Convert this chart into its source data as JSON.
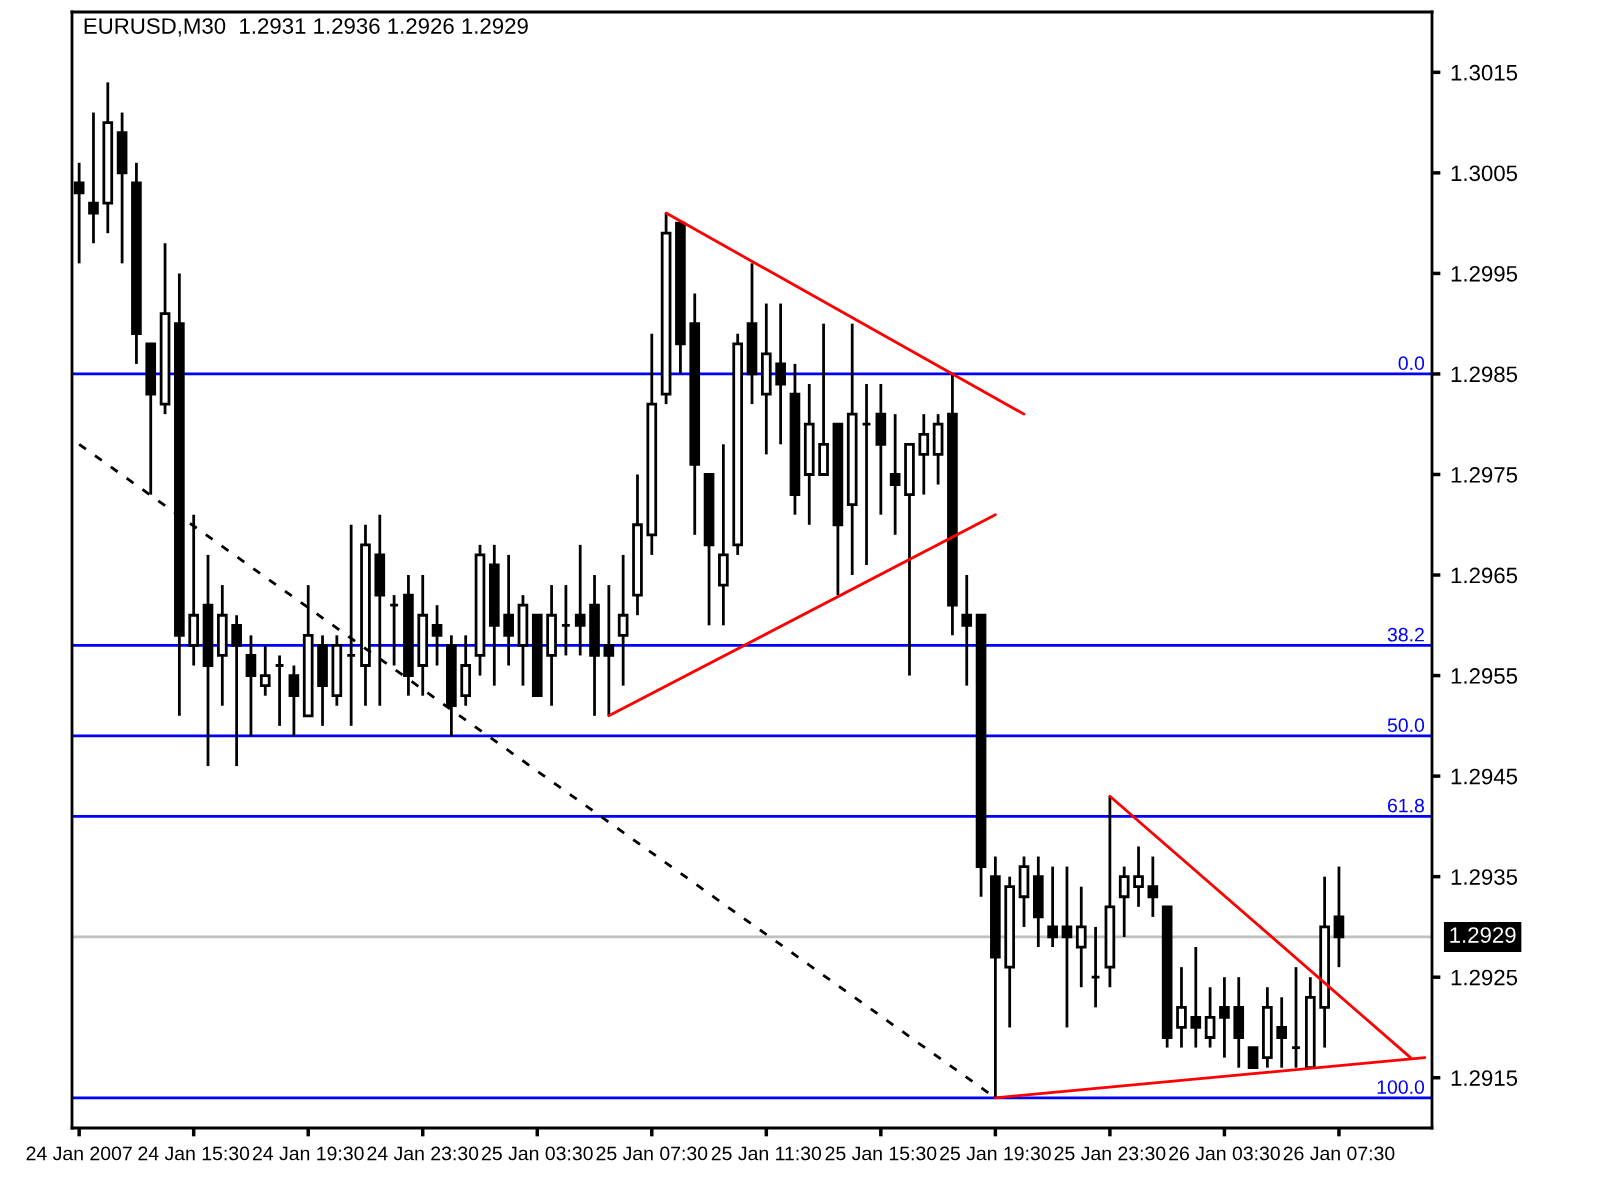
{
  "chart_data": {
    "type": "candlestick",
    "title": "EURUSD,M30  1.2931 1.2936 1.2926 1.2929",
    "color": "#000000",
    "x": [
      "2007-01-24T11:30",
      "2007-01-24T12:00",
      "2007-01-24T12:30",
      "2007-01-24T13:00",
      "2007-01-24T13:30",
      "2007-01-24T14:00",
      "2007-01-24T14:30",
      "2007-01-24T15:00",
      "2007-01-24T15:30",
      "2007-01-24T16:00",
      "2007-01-24T16:30",
      "2007-01-24T17:00",
      "2007-01-24T17:30",
      "2007-01-24T18:00",
      "2007-01-24T18:30",
      "2007-01-24T19:00",
      "2007-01-24T19:30",
      "2007-01-24T20:00",
      "2007-01-24T20:30",
      "2007-01-24T21:00",
      "2007-01-24T21:30",
      "2007-01-24T22:00",
      "2007-01-24T22:30",
      "2007-01-24T23:00",
      "2007-01-24T23:30",
      "2007-01-25T00:00",
      "2007-01-25T00:30",
      "2007-01-25T01:00",
      "2007-01-25T01:30",
      "2007-01-25T02:00",
      "2007-01-25T02:30",
      "2007-01-25T03:00",
      "2007-01-25T03:30",
      "2007-01-25T04:00",
      "2007-01-25T04:30",
      "2007-01-25T05:00",
      "2007-01-25T05:30",
      "2007-01-25T06:00",
      "2007-01-25T06:30",
      "2007-01-25T07:00",
      "2007-01-25T07:30",
      "2007-01-25T08:00",
      "2007-01-25T08:30",
      "2007-01-25T09:00",
      "2007-01-25T09:30",
      "2007-01-25T10:00",
      "2007-01-25T10:30",
      "2007-01-25T11:00",
      "2007-01-25T11:30",
      "2007-01-25T12:00",
      "2007-01-25T12:30",
      "2007-01-25T13:00",
      "2007-01-25T13:30",
      "2007-01-25T14:00",
      "2007-01-25T14:30",
      "2007-01-25T15:00",
      "2007-01-25T15:30",
      "2007-01-25T16:00",
      "2007-01-25T16:30",
      "2007-01-25T17:00",
      "2007-01-25T17:30",
      "2007-01-25T18:00",
      "2007-01-25T18:30",
      "2007-01-25T19:00",
      "2007-01-25T19:30",
      "2007-01-25T20:00",
      "2007-01-25T20:30",
      "2007-01-25T21:00",
      "2007-01-25T21:30",
      "2007-01-25T22:00",
      "2007-01-25T22:30",
      "2007-01-25T23:00",
      "2007-01-25T23:30",
      "2007-01-26T00:00",
      "2007-01-26T00:30",
      "2007-01-26T01:00",
      "2007-01-26T01:30",
      "2007-01-26T02:00",
      "2007-01-26T02:30",
      "2007-01-26T03:00",
      "2007-01-26T03:30",
      "2007-01-26T04:00",
      "2007-01-26T04:30",
      "2007-01-26T05:00",
      "2007-01-26T05:30",
      "2007-01-26T06:00",
      "2007-01-26T06:30",
      "2007-01-26T07:00",
      "2007-01-26T07:30"
    ],
    "ohlc": [
      [
        1.3004,
        1.3006,
        1.2996,
        1.3003
      ],
      [
        1.3002,
        1.3011,
        1.2998,
        1.3001
      ],
      [
        1.3002,
        1.3014,
        1.2999,
        1.301
      ],
      [
        1.3009,
        1.3011,
        1.2996,
        1.3005
      ],
      [
        1.3004,
        1.3006,
        1.2986,
        1.2989
      ],
      [
        1.2988,
        1.2988,
        1.2973,
        1.2983
      ],
      [
        1.2982,
        1.2998,
        1.2981,
        1.2991
      ],
      [
        1.299,
        1.2995,
        1.2951,
        1.2959
      ],
      [
        1.2958,
        1.2971,
        1.2956,
        1.2961
      ],
      [
        1.2962,
        1.2967,
        1.2946,
        1.2956
      ],
      [
        1.2957,
        1.2964,
        1.2952,
        1.2961
      ],
      [
        1.296,
        1.2961,
        1.2946,
        1.2958
      ],
      [
        1.2957,
        1.2959,
        1.2949,
        1.2955
      ],
      [
        1.2954,
        1.2958,
        1.2953,
        1.2955
      ],
      [
        1.2956,
        1.2957,
        1.295,
        1.2956
      ],
      [
        1.2955,
        1.2956,
        1.2949,
        1.2953
      ],
      [
        1.2951,
        1.2964,
        1.2951,
        1.2959
      ],
      [
        1.2958,
        1.2959,
        1.295,
        1.2954
      ],
      [
        1.2953,
        1.2959,
        1.2952,
        1.2958
      ],
      [
        1.2957,
        1.297,
        1.295,
        1.2957
      ],
      [
        1.2956,
        1.297,
        1.2952,
        1.2968
      ],
      [
        1.2967,
        1.2971,
        1.2952,
        1.2963
      ],
      [
        1.2962,
        1.2963,
        1.2956,
        1.2962
      ],
      [
        1.2963,
        1.2965,
        1.2953,
        1.2955
      ],
      [
        1.2956,
        1.2965,
        1.2953,
        1.2961
      ],
      [
        1.296,
        1.2962,
        1.2956,
        1.2959
      ],
      [
        1.2958,
        1.2959,
        1.2949,
        1.2952
      ],
      [
        1.2953,
        1.2959,
        1.2952,
        1.2956
      ],
      [
        1.2957,
        1.2968,
        1.2955,
        1.2967
      ],
      [
        1.2966,
        1.2968,
        1.2954,
        1.296
      ],
      [
        1.2961,
        1.2967,
        1.2956,
        1.2959
      ],
      [
        1.2958,
        1.2963,
        1.2954,
        1.2962
      ],
      [
        1.2961,
        1.2961,
        1.2953,
        1.2953
      ],
      [
        1.2957,
        1.2964,
        1.2952,
        1.2961
      ],
      [
        1.296,
        1.2964,
        1.2957,
        1.296
      ],
      [
        1.2961,
        1.2968,
        1.2957,
        1.296
      ],
      [
        1.2962,
        1.2965,
        1.2951,
        1.2957
      ],
      [
        1.2958,
        1.2964,
        1.2951,
        1.2957
      ],
      [
        1.2959,
        1.2967,
        1.2954,
        1.2961
      ],
      [
        1.2963,
        1.2975,
        1.2961,
        1.297
      ],
      [
        1.2969,
        1.2989,
        1.2967,
        1.2982
      ],
      [
        1.2983,
        1.3001,
        1.2982,
        1.2999
      ],
      [
        1.3,
        1.3,
        1.2985,
        1.2988
      ],
      [
        1.299,
        1.2993,
        1.2969,
        1.2976
      ],
      [
        1.2975,
        1.2975,
        1.296,
        1.2968
      ],
      [
        1.2964,
        1.2978,
        1.296,
        1.2967
      ],
      [
        1.2968,
        1.2989,
        1.2967,
        1.2988
      ],
      [
        1.299,
        1.2996,
        1.2982,
        1.2985
      ],
      [
        1.2983,
        1.2992,
        1.2977,
        1.2987
      ],
      [
        1.2986,
        1.2992,
        1.2978,
        1.2984
      ],
      [
        1.2983,
        1.2986,
        1.2971,
        1.2973
      ],
      [
        1.2975,
        1.2984,
        1.297,
        1.298
      ],
      [
        1.2975,
        1.299,
        1.2975,
        1.2978
      ],
      [
        1.298,
        1.298,
        1.2963,
        1.297
      ],
      [
        1.2972,
        1.299,
        1.2965,
        1.2981
      ],
      [
        1.298,
        1.2984,
        1.2966,
        1.298
      ],
      [
        1.2981,
        1.2984,
        1.2971,
        1.2978
      ],
      [
        1.2975,
        1.2981,
        1.2969,
        1.2974
      ],
      [
        1.2973,
        1.2978,
        1.2955,
        1.2978
      ],
      [
        1.2977,
        1.2981,
        1.2973,
        1.2979
      ],
      [
        1.2977,
        1.2981,
        1.2974,
        1.298
      ],
      [
        1.2981,
        1.2985,
        1.2959,
        1.2962
      ],
      [
        1.2961,
        1.2965,
        1.2954,
        1.296
      ],
      [
        1.2961,
        1.2961,
        1.2933,
        1.2936
      ],
      [
        1.2935,
        1.2937,
        1.2913,
        1.2927
      ],
      [
        1.2926,
        1.2935,
        1.292,
        1.2934
      ],
      [
        1.2933,
        1.2937,
        1.293,
        1.2936
      ],
      [
        1.2935,
        1.2937,
        1.2928,
        1.2931
      ],
      [
        1.293,
        1.2936,
        1.2928,
        1.2929
      ],
      [
        1.293,
        1.2936,
        1.292,
        1.2929
      ],
      [
        1.2928,
        1.2934,
        1.2924,
        1.293
      ],
      [
        1.2925,
        1.293,
        1.2922,
        1.2925
      ],
      [
        1.2926,
        1.2943,
        1.2924,
        1.2932
      ],
      [
        1.2933,
        1.2936,
        1.2929,
        1.2935
      ],
      [
        1.2934,
        1.2938,
        1.2932,
        1.2935
      ],
      [
        1.2934,
        1.2937,
        1.2931,
        1.2933
      ],
      [
        1.2932,
        1.2932,
        1.2918,
        1.2919
      ],
      [
        1.292,
        1.2926,
        1.2918,
        1.2922
      ],
      [
        1.2921,
        1.2928,
        1.2918,
        1.292
      ],
      [
        1.2919,
        1.2924,
        1.2918,
        1.2921
      ],
      [
        1.2922,
        1.2925,
        1.2917,
        1.2921
      ],
      [
        1.2922,
        1.2925,
        1.2916,
        1.2919
      ],
      [
        1.2918,
        1.2918,
        1.2916,
        1.2916
      ],
      [
        1.2917,
        1.2924,
        1.2916,
        1.2922
      ],
      [
        1.292,
        1.2923,
        1.2916,
        1.2919
      ],
      [
        1.2918,
        1.2926,
        1.2916,
        1.2918
      ],
      [
        1.2916,
        1.2925,
        1.2916,
        1.2923
      ],
      [
        1.2922,
        1.2935,
        1.2918,
        1.293
      ],
      [
        1.2931,
        1.2936,
        1.2926,
        1.2929
      ]
    ],
    "series": [
      {
        "type": "line",
        "x": [
          "2007-01-25T08:00",
          "2007-01-25T20:30"
        ],
        "values": [
          1.3001,
          1.2981
        ],
        "color": "#ff0000",
        "line_style": "solid"
      },
      {
        "type": "line",
        "x": [
          "2007-01-25T06:00",
          "2007-01-25T19:30"
        ],
        "values": [
          1.2951,
          1.2971
        ],
        "color": "#ff0000",
        "line_style": "solid"
      },
      {
        "type": "line",
        "x": [
          "2007-01-25T23:30",
          "2007-01-26T10:00"
        ],
        "values": [
          1.2943,
          1.2917
        ],
        "color": "#ff0000",
        "line_style": "solid"
      },
      {
        "type": "line",
        "x": [
          "2007-01-25T19:30",
          "2007-01-26T10:30"
        ],
        "values": [
          1.2913,
          1.2917
        ],
        "color": "#ff0000",
        "line_style": "solid"
      },
      {
        "type": "line",
        "x": [
          "2007-01-24T11:30",
          "2007-01-25T19:30"
        ],
        "values": [
          1.2978,
          1.2913
        ],
        "color": "#000000",
        "line_style": "dashed"
      }
    ],
    "ref_lines": [
      {
        "axis": "y",
        "value": 1.2985,
        "color": "#0000ff"
      },
      {
        "axis": "y",
        "value": 1.2958,
        "color": "#0000ff"
      },
      {
        "axis": "y",
        "value": 1.2949,
        "color": "#0000ff"
      },
      {
        "axis": "y",
        "value": 1.2941,
        "color": "#0000ff"
      },
      {
        "axis": "y",
        "value": 1.2913,
        "color": "#0000ff"
      },
      {
        "axis": "y",
        "value": 1.2929,
        "label": "1.2929",
        "color": "#c0c0c0"
      }
    ],
    "xlim": [
      "2007-01-24T11:15",
      "2007-01-26T10:45"
    ],
    "xticks": [
      {
        "value": "2007-01-24T11:30",
        "label": "24 Jan 2007"
      },
      {
        "value": "2007-01-24T15:30",
        "label": "24 Jan 15:30"
      },
      {
        "value": "2007-01-24T19:30",
        "label": "24 Jan 19:30"
      },
      {
        "value": "2007-01-24T23:30",
        "label": "24 Jan 23:30"
      },
      {
        "value": "2007-01-25T03:30",
        "label": "25 Jan 03:30"
      },
      {
        "value": "2007-01-25T07:30",
        "label": "25 Jan 07:30"
      },
      {
        "value": "2007-01-25T11:30",
        "label": "25 Jan 11:30"
      },
      {
        "value": "2007-01-25T15:30",
        "label": "25 Jan 15:30"
      },
      {
        "value": "2007-01-25T19:30",
        "label": "25 Jan 19:30"
      },
      {
        "value": "2007-01-25T23:30",
        "label": "25 Jan 23:30"
      },
      {
        "value": "2007-01-26T03:30",
        "label": "26 Jan 03:30"
      },
      {
        "value": "2007-01-26T07:30",
        "label": "26 Jan 07:30"
      }
    ],
    "ylim": [
      1.291,
      1.3021
    ],
    "yticks": [
      1.2915,
      1.2925,
      1.2935,
      1.2945,
      1.2955,
      1.2965,
      1.2975,
      1.2985,
      1.2995,
      1.3005,
      1.3015
    ],
    "annotations": [
      {
        "text": "0.0",
        "x": "2007-01-26T10:30",
        "y": 1.2985
      },
      {
        "text": "38.2",
        "x": "2007-01-26T10:30",
        "y": 1.2958
      },
      {
        "text": "50.0",
        "x": "2007-01-26T10:30",
        "y": 1.2949
      },
      {
        "text": "61.8",
        "x": "2007-01-26T10:30",
        "y": 1.2941
      },
      {
        "text": "100.0",
        "x": "2007-01-26T10:30",
        "y": 1.2913
      }
    ],
    "grid": false,
    "legend": false
  }
}
